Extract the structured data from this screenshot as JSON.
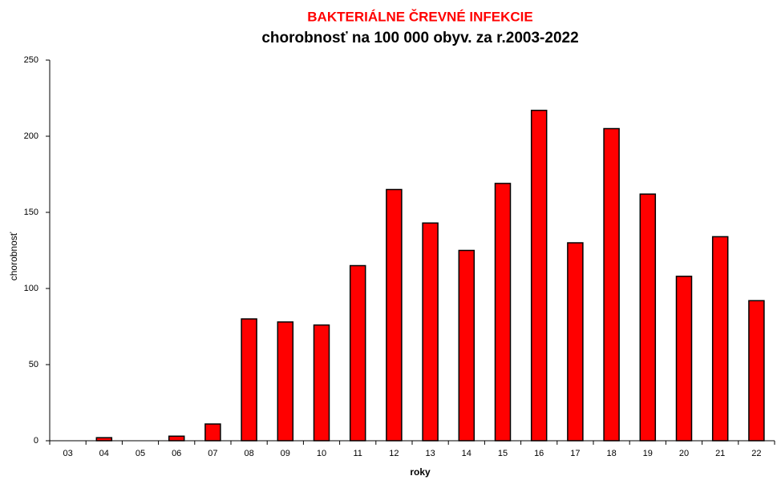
{
  "chart_data": {
    "type": "bar",
    "title": "BAKTERIÁLNE ČREVNÉ INFEKCIE",
    "subtitle": "chorobnosť na 100 000 obyv. za r.2003-2022",
    "x_label": "roky",
    "y_label": "chorobnosť",
    "categories": [
      "03",
      "04",
      "05",
      "06",
      "07",
      "08",
      "09",
      "10",
      "11",
      "12",
      "13",
      "14",
      "15",
      "16",
      "17",
      "18",
      "19",
      "20",
      "21",
      "22"
    ],
    "values": [
      0,
      2,
      0,
      3,
      11,
      80,
      78,
      76,
      115,
      165,
      143,
      125,
      169,
      217,
      130,
      205,
      162,
      108,
      134,
      92
    ],
    "color": "#ff0000",
    "ylim": [
      0,
      250
    ],
    "yticks": [
      0,
      50,
      100,
      150,
      200,
      250
    ],
    "grid": false
  }
}
